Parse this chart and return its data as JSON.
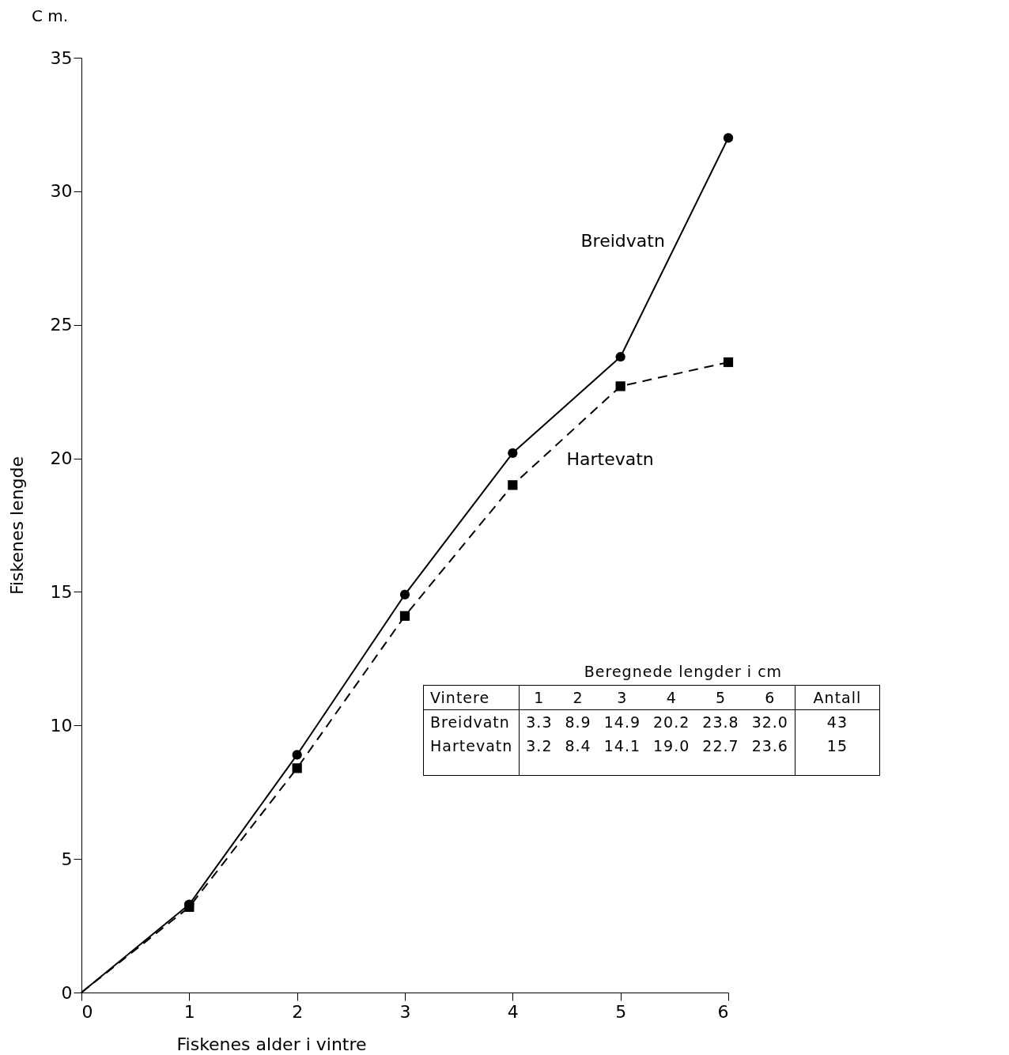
{
  "chart_data": {
    "type": "line",
    "xlabel": "Fiskenes alder i vintre",
    "ylabel": "Fiskenes lengde",
    "annotations": [
      "C m.",
      "Beregnede lengder i cm",
      "Vintere",
      "1",
      "2",
      "3",
      "4",
      "5",
      "6",
      "Antall",
      "Breidvatn",
      "3.3",
      "8.9",
      "14.9",
      "20.2",
      "23.8",
      "32.0",
      "43",
      "Hartevatn",
      "3.2",
      "8.4",
      "14.1",
      "19.0",
      "22.7",
      "23.6",
      "15"
    ],
    "x": [
      0,
      1,
      2,
      3,
      4,
      5,
      6
    ],
    "series": [
      {
        "name": "Breidvatn",
        "color": "#000000",
        "marker": "circle",
        "line_style": "solid",
        "values": [
          0,
          3.3,
          8.9,
          14.9,
          20.2,
          23.8,
          32.0
        ]
      },
      {
        "name": "Hartevatn",
        "color": "#000000",
        "marker": "square",
        "line_style": "dashed",
        "values": [
          0,
          3.2,
          8.4,
          14.1,
          19.0,
          22.7,
          23.6
        ]
      }
    ],
    "xlim": [
      0,
      6
    ],
    "xticks": [
      0,
      1,
      2,
      3,
      4,
      5,
      6
    ],
    "ylim": [
      0,
      35
    ],
    "yticks": [
      0,
      5,
      10,
      15,
      20,
      25,
      30,
      35
    ],
    "grid": false
  }
}
